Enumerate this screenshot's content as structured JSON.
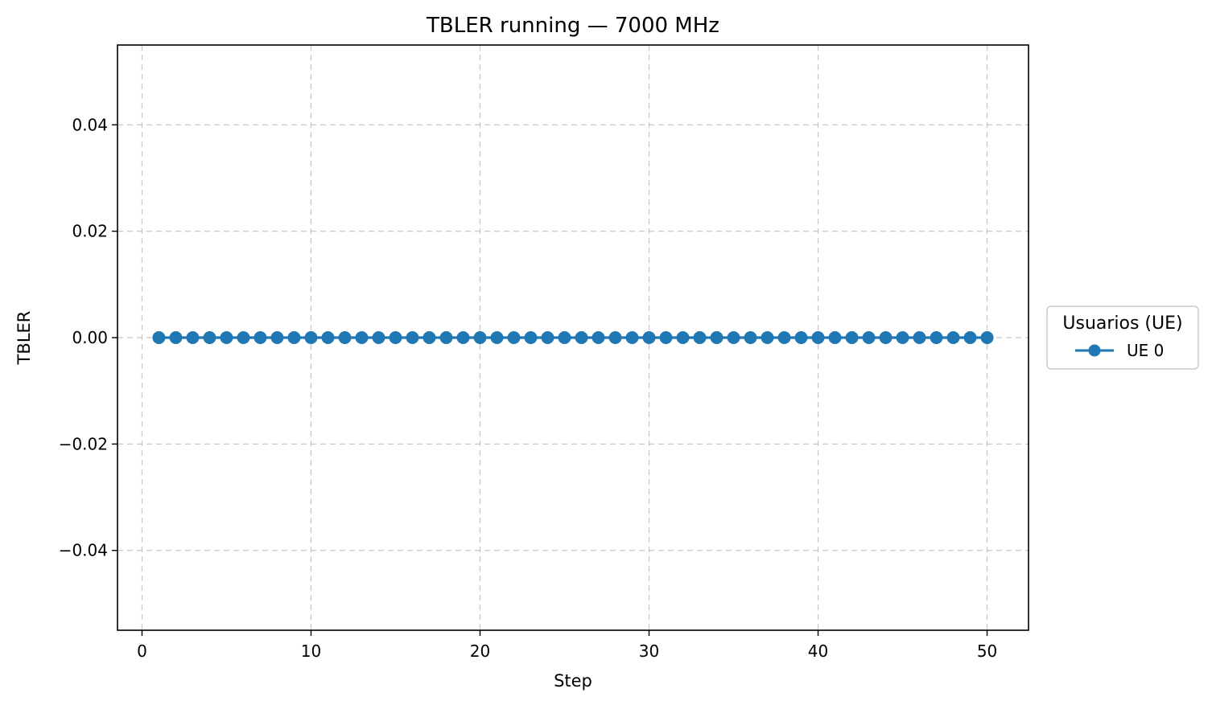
{
  "chart_data": {
    "type": "line",
    "title": "TBLER running — 7000 MHz",
    "xlabel": "Step",
    "ylabel": "TBLER",
    "xlim": [
      -1.45,
      52.45
    ],
    "ylim": [
      -0.055,
      0.055
    ],
    "x_ticks": [
      0,
      10,
      20,
      30,
      40,
      50
    ],
    "x_tick_labels": [
      "0",
      "10",
      "20",
      "30",
      "40",
      "50"
    ],
    "y_ticks": [
      0.04,
      0.02,
      0.0,
      -0.02,
      -0.04
    ],
    "y_tick_labels": [
      "0.04",
      "0.02",
      "0.00",
      "−0.02",
      "−0.04"
    ],
    "grid": true,
    "legend": {
      "title": "Usuarios (UE)",
      "placement": "outside-right"
    },
    "x": [
      1,
      2,
      3,
      4,
      5,
      6,
      7,
      8,
      9,
      10,
      11,
      12,
      13,
      14,
      15,
      16,
      17,
      18,
      19,
      20,
      21,
      22,
      23,
      24,
      25,
      26,
      27,
      28,
      29,
      30,
      31,
      32,
      33,
      34,
      35,
      36,
      37,
      38,
      39,
      40,
      41,
      42,
      43,
      44,
      45,
      46,
      47,
      48,
      49,
      50
    ],
    "series": [
      {
        "name": "UE 0",
        "color": "#1f77b4",
        "marker": "circle",
        "values": [
          0,
          0,
          0,
          0,
          0,
          0,
          0,
          0,
          0,
          0,
          0,
          0,
          0,
          0,
          0,
          0,
          0,
          0,
          0,
          0,
          0,
          0,
          0,
          0,
          0,
          0,
          0,
          0,
          0,
          0,
          0,
          0,
          0,
          0,
          0,
          0,
          0,
          0,
          0,
          0,
          0,
          0,
          0,
          0,
          0,
          0,
          0,
          0,
          0,
          0
        ]
      }
    ]
  }
}
